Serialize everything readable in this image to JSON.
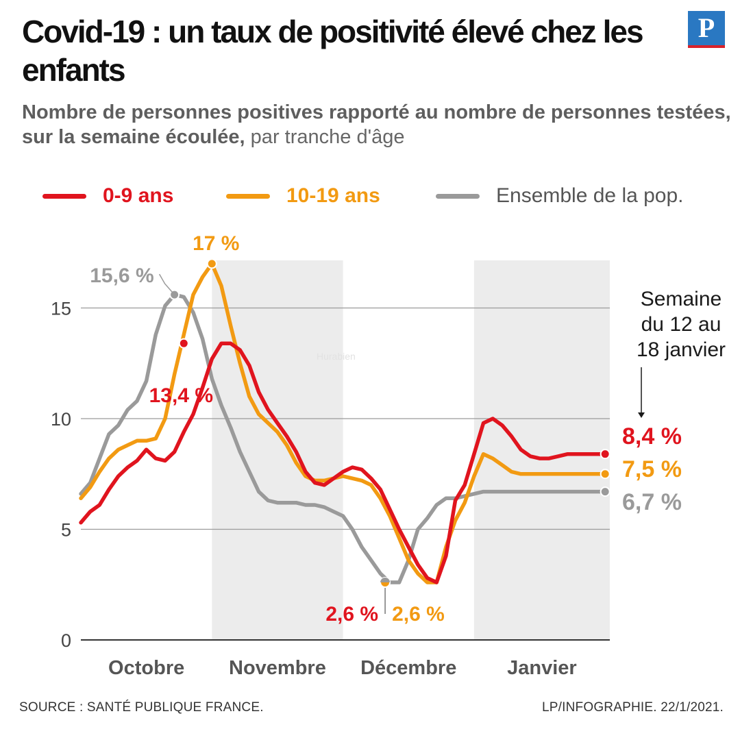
{
  "header": {
    "title": "Covid-19 : un taux de positivité élevé chez les enfants",
    "logo_letter": "P",
    "subtitle_bold": "Nombre de personnes positives rapporté au nombre de personnes testées, sur la semaine écoulée,",
    "subtitle_regular": " par tranche d'âge"
  },
  "legend": [
    {
      "label": "0-9 ans",
      "color": "#e0141e"
    },
    {
      "label": "10-19 ans",
      "color": "#f29a12"
    },
    {
      "label": "Ensemble de la pop.",
      "color": "#9a9a9a"
    }
  ],
  "footer": {
    "source": "SOURCE : SANTÉ PUBLIQUE FRANCE.",
    "credit": "LP/INFOGRAPHIE.  22/1/2021."
  },
  "watermark": "Hurabien",
  "chart_data": {
    "type": "line",
    "title": "Covid-19 : un taux de positivité élevé chez les enfants",
    "ylabel": "",
    "xlabel": "",
    "ylim": [
      0,
      17
    ],
    "yticks": [
      0,
      5,
      10,
      15
    ],
    "x_range": [
      0,
      113
    ],
    "months": [
      {
        "label": "Octobre",
        "start": 0,
        "end": 28,
        "shaded": false
      },
      {
        "label": "Novembre",
        "start": 28,
        "end": 56,
        "shaded": true
      },
      {
        "label": "Décembre",
        "start": 56,
        "end": 84,
        "shaded": false
      },
      {
        "label": "Janvier",
        "start": 84,
        "end": 113,
        "shaded": true
      }
    ],
    "series": [
      {
        "name": "0-9 ans",
        "color": "#e0141e",
        "x": [
          0,
          2,
          4,
          6,
          8,
          10,
          12,
          14,
          16,
          18,
          20,
          22,
          24,
          26,
          28,
          30,
          32,
          34,
          36,
          38,
          40,
          42,
          44,
          46,
          48,
          50,
          52,
          54,
          56,
          58,
          60,
          62,
          64,
          66,
          68,
          70,
          72,
          74,
          76,
          78,
          80,
          82,
          84,
          86,
          88,
          90,
          92,
          94,
          96,
          98,
          100,
          102,
          104,
          106,
          108,
          110,
          112
        ],
        "y": [
          5.3,
          5.8,
          6.1,
          6.8,
          7.4,
          7.8,
          8.1,
          8.6,
          8.2,
          8.1,
          8.5,
          9.4,
          10.2,
          11.4,
          12.7,
          13.4,
          13.4,
          13.1,
          12.4,
          11.2,
          10.4,
          9.8,
          9.2,
          8.5,
          7.6,
          7.1,
          7.0,
          7.3,
          7.6,
          7.8,
          7.7,
          7.3,
          6.8,
          5.9,
          5.0,
          4.2,
          3.4,
          2.8,
          2.6,
          3.8,
          6.3,
          7.0,
          8.4,
          9.8,
          10.0,
          9.7,
          9.2,
          8.6,
          8.3,
          8.2,
          8.2,
          8.3,
          8.4,
          8.4,
          8.4,
          8.4,
          8.4
        ]
      },
      {
        "name": "10-19 ans",
        "color": "#f29a12",
        "x": [
          0,
          2,
          4,
          6,
          8,
          10,
          12,
          14,
          16,
          18,
          20,
          22,
          24,
          26,
          28,
          30,
          32,
          34,
          36,
          38,
          40,
          42,
          44,
          46,
          48,
          50,
          52,
          54,
          56,
          58,
          60,
          62,
          64,
          66,
          68,
          70,
          72,
          74,
          76,
          78,
          80,
          82,
          84,
          86,
          88,
          90,
          92,
          94,
          96,
          98,
          100,
          102,
          104,
          106,
          108,
          110,
          112
        ],
        "y": [
          6.4,
          6.9,
          7.6,
          8.2,
          8.6,
          8.8,
          9.0,
          9.0,
          9.1,
          10.0,
          12.0,
          13.8,
          15.6,
          16.4,
          17.0,
          16.0,
          14.2,
          12.5,
          11.0,
          10.2,
          9.8,
          9.4,
          8.8,
          8.0,
          7.4,
          7.2,
          7.2,
          7.3,
          7.4,
          7.3,
          7.2,
          7.0,
          6.4,
          5.6,
          4.6,
          3.6,
          3.0,
          2.6,
          2.6,
          4.2,
          5.4,
          6.2,
          7.4,
          8.4,
          8.2,
          7.9,
          7.6,
          7.5,
          7.5,
          7.5,
          7.5,
          7.5,
          7.5,
          7.5,
          7.5,
          7.5,
          7.5
        ]
      },
      {
        "name": "Ensemble de la pop.",
        "color": "#9a9a9a",
        "x": [
          0,
          2,
          4,
          6,
          8,
          10,
          12,
          14,
          16,
          18,
          20,
          22,
          24,
          26,
          28,
          30,
          32,
          34,
          36,
          38,
          40,
          42,
          44,
          46,
          48,
          50,
          52,
          54,
          56,
          58,
          60,
          62,
          64,
          66,
          68,
          70,
          72,
          74,
          76,
          78,
          80,
          82,
          84,
          86,
          88,
          90,
          92,
          94,
          96,
          98,
          100,
          102,
          104,
          106,
          108,
          110,
          112
        ],
        "y": [
          6.6,
          7.1,
          8.2,
          9.3,
          9.7,
          10.4,
          10.8,
          11.7,
          13.8,
          15.1,
          15.6,
          15.5,
          14.8,
          13.6,
          11.8,
          10.6,
          9.6,
          8.5,
          7.6,
          6.7,
          6.3,
          6.2,
          6.2,
          6.2,
          6.1,
          6.1,
          6.0,
          5.8,
          5.6,
          5.0,
          4.2,
          3.6,
          3.0,
          2.6,
          2.6,
          3.6,
          5.0,
          5.5,
          6.1,
          6.4,
          6.4,
          6.5,
          6.6,
          6.7,
          6.7,
          6.7,
          6.7,
          6.7,
          6.7,
          6.7,
          6.7,
          6.7,
          6.7,
          6.7,
          6.7,
          6.7,
          6.7
        ]
      }
    ],
    "annotations": [
      {
        "text": "17 %",
        "series": "10-19 ans",
        "x": 28,
        "y": 17.0,
        "color": "#f29a12"
      },
      {
        "text": "15,6 %",
        "series": "Ensemble de la pop.",
        "x": 20,
        "y": 15.6,
        "color": "#9a9a9a"
      },
      {
        "text": "13,4 %",
        "series": "0-9 ans",
        "x": 22,
        "y": 13.4,
        "color": "#e0141e"
      },
      {
        "text": "2,6 %",
        "series": "0-9 ans",
        "x": 65,
        "y": 2.6,
        "color": "#e0141e"
      },
      {
        "text": "2,6 %",
        "series": "10-19 ans",
        "x": 65,
        "y": 2.6,
        "color": "#f29a12"
      },
      {
        "text": "8,4 %",
        "series": "0-9 ans",
        "x": 112,
        "y": 8.4,
        "color": "#e0141e"
      },
      {
        "text": "7,5 %",
        "series": "10-19 ans",
        "x": 112,
        "y": 7.5,
        "color": "#f29a12"
      },
      {
        "text": "6,7 %",
        "series": "Ensemble de la pop.",
        "x": 112,
        "y": 6.7,
        "color": "#9a9a9a"
      },
      {
        "text_lines": [
          "Semaine",
          "du 12 au",
          "18 janvier"
        ],
        "x": 109
      }
    ]
  }
}
